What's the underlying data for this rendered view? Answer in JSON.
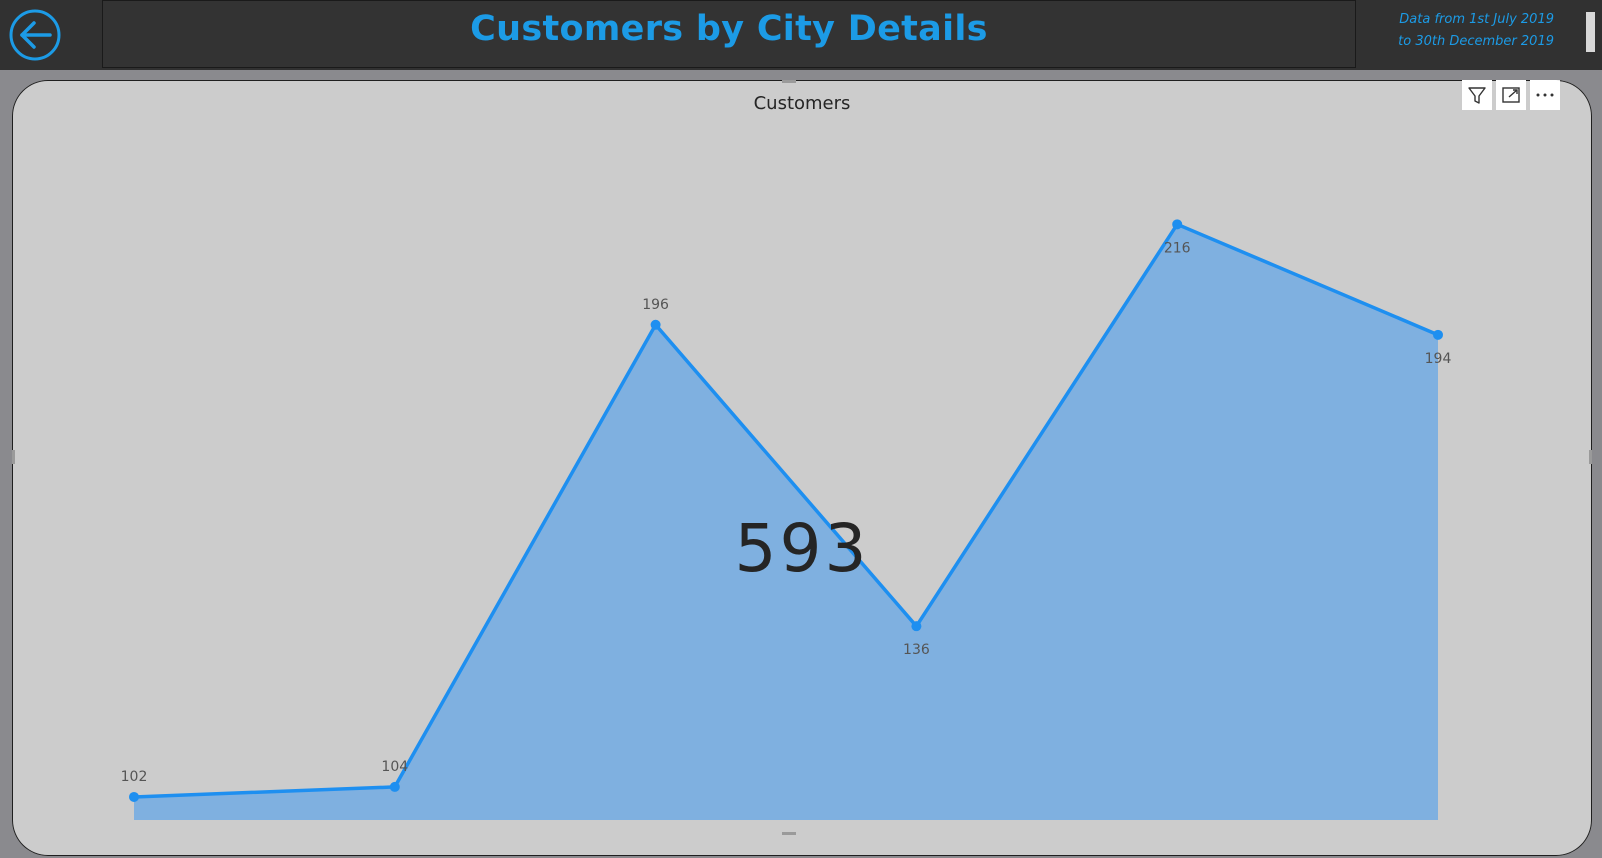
{
  "header": {
    "title": "Customers by City Details",
    "date_line1": "Data from 1st July 2019",
    "date_line2": "to 30th December 2019",
    "back_icon": "back-arrow-icon"
  },
  "visual": {
    "title": "Customers",
    "kpi_value": "593",
    "header_icons": [
      "filter-icon",
      "focus-mode-icon",
      "more-options-icon"
    ]
  },
  "colors": {
    "accent": "#1c9be6",
    "line": "#1e8ff0",
    "area": "#7fb0e0",
    "title_bar": "#333333",
    "visual_bg": "#cccccc"
  },
  "chart_data": {
    "type": "area",
    "title": "Customers",
    "xlabel": "",
    "ylabel": "",
    "categories": [
      "",
      "",
      "",
      "",
      "",
      ""
    ],
    "series": [
      {
        "values": [
          102,
          104,
          196,
          136,
          216,
          194
        ]
      }
    ],
    "data_labels": [
      "102",
      "104",
      "196",
      "136",
      "216",
      "194"
    ],
    "ylim": [
      100,
      230
    ],
    "grid": false
  }
}
